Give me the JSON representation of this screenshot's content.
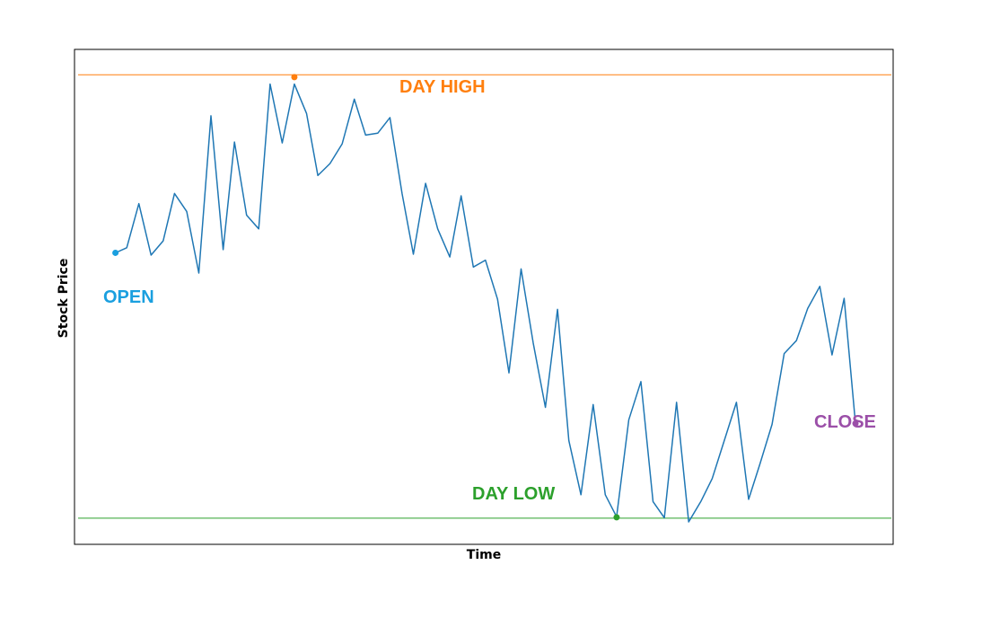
{
  "chart_data": {
    "type": "line",
    "title": "",
    "xlabel": "Time",
    "ylabel": "Stock Price",
    "ylim": [
      0,
      100
    ],
    "xlim": [
      0,
      1
    ],
    "grid": false,
    "series": [
      {
        "color": "#1f77b4",
        "x": [
          0.045,
          0.059,
          0.074,
          0.089,
          0.104,
          0.118,
          0.133,
          0.148,
          0.163,
          0.178,
          0.192,
          0.207,
          0.222,
          0.236,
          0.251,
          0.266,
          0.281,
          0.295,
          0.31,
          0.325,
          0.34,
          0.354,
          0.369,
          0.384,
          0.399,
          0.413,
          0.428,
          0.443,
          0.458,
          0.472,
          0.487,
          0.502,
          0.517,
          0.531,
          0.546,
          0.561,
          0.576,
          0.591,
          0.605,
          0.62,
          0.635,
          0.65,
          0.664,
          0.679,
          0.694,
          0.709,
          0.723,
          0.738,
          0.753,
          0.768,
          0.782,
          0.797,
          0.812,
          0.827,
          0.841,
          0.856,
          0.871,
          0.886,
          0.9,
          0.915,
          0.93,
          0.945,
          0.959
        ],
        "y": [
          58.7,
          59.8,
          69.4,
          58.2,
          61.3,
          71.6,
          67.7,
          54.3,
          88.5,
          59.4,
          82.8,
          66.9,
          63.9,
          95.4,
          82.6,
          95.4,
          89,
          75.5,
          78.1,
          82.4,
          92.1,
          84.3,
          84.7,
          88.1,
          71.6,
          58.4,
          73.8,
          63.9,
          57.8,
          71.1,
          55.6,
          57.1,
          48.6,
          32.6,
          55.2,
          39.1,
          25.1,
          46.4,
          17.9,
          6.1,
          25.7,
          6.1,
          1.3,
          22.4,
          30.7,
          4.6,
          1.1,
          26.2,
          0.2,
          4.6,
          9.6,
          17.9,
          26.2,
          5.1,
          12.8,
          21.4,
          36.8,
          39.6,
          46.6,
          51.4,
          36.5,
          48.8,
          21.6
        ]
      }
    ],
    "reference_lines": [
      {
        "label": "day-high-line",
        "value": 97.4,
        "color": "#ff7f0e"
      },
      {
        "label": "day-low-line",
        "value": 1.0,
        "color": "#2ca02c"
      }
    ],
    "markers": [
      {
        "label": "OPEN",
        "x": 0.045,
        "y": 58.7,
        "color": "#1a9fdf"
      },
      {
        "label": "DAY HIGH",
        "x": 0.266,
        "y": 96.9,
        "color": "#ff7f0e"
      },
      {
        "label": "DAY LOW",
        "x": 0.664,
        "y": 1.2,
        "color": "#2ca02c"
      },
      {
        "label": "CLOSE",
        "x": 0.959,
        "y": 21.6,
        "color": "#9b4fa8"
      }
    ],
    "annotations": [
      {
        "text": "OPEN",
        "color": "#1a9fdf"
      },
      {
        "text": "DAY HIGH",
        "color": "#ff7f0e"
      },
      {
        "text": "DAY LOW",
        "color": "#2ca02c"
      },
      {
        "text": "CLOSE",
        "color": "#9b4fa8"
      }
    ]
  }
}
